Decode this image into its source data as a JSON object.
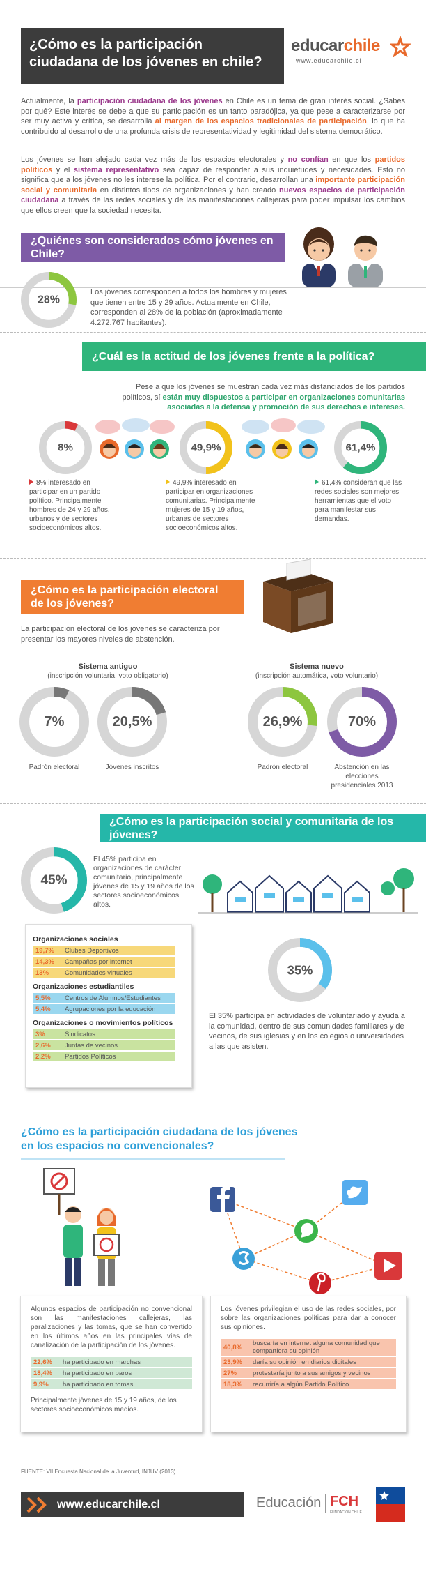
{
  "header": {
    "title": "¿Cómo es la participación ciudadana de los jóvenes en chile?",
    "logo": {
      "brand_a": "educar",
      "brand_b": "chile",
      "url": "www.educarchile.cl"
    }
  },
  "intro": [
    [
      "Actualmente, la ",
      "participación ciudadana de los jóvenes",
      " en Chile es un tema de gran interés social. ¿Sabes por qué? Este interés se debe a que su participación es un tanto paradójica, ya que pese a caracterizarse por ser muy activa y crítica, se desarrolla ",
      "al margen de los espacios tradicionales de participación",
      ", lo que ha contribuido al desarrollo de una profunda crisis de representatividad y legitimidad del sistema democrático."
    ],
    [
      "Los jóvenes se han alejado cada vez más de los espacios electorales y ",
      "no confían",
      " en que los ",
      "partidos políticos",
      " y el ",
      "sistema representativo",
      " sea capaz de responder a sus inquietudes y necesidades. Esto no significa que a los jóvenes no les interese la política. Por el contrario, desarrollan una ",
      "importante participación social y comunitaria",
      " en distintos tipos de organizaciones y han creado ",
      "nuevos espacios de participación ciudadana",
      " a través de las redes sociales y de las manifestaciones callejeras para poder impulsar los cambios que ellos creen que la sociedad necesita."
    ]
  ],
  "who": {
    "title": "¿Quiénes son considerados cómo jóvenes en Chile?",
    "donut": {
      "value": 28,
      "label": "28%",
      "color": "#8dc63f"
    },
    "text": "Los jóvenes corresponden a todos los hombres y mujeres que tienen entre 15 y 29 años. Actualmente en Chile, corresponden al 28% de la población (aproximadamente 4.272.767 habitantes)."
  },
  "attitude": {
    "title": "¿Cuál es la actitud de los jóvenes frente a la política?",
    "intro": [
      "Pese a que los jóvenes se muestran cada vez más distanciados de los partidos políticos, sí ",
      "están muy dispuestos a participar en organizaciones comunitarias asociadas a la defensa y promoción de sus derechos e intereses."
    ],
    "stats": [
      {
        "donut": {
          "value": 8,
          "label": "8%",
          "color": "#d9383a"
        },
        "text": "8% interesado en participar en un partido político. Principalmente hombres de 24 y 29 años, urbanos y de sectores socioeconómicos altos."
      },
      {
        "donut": {
          "value": 49.9,
          "label": "49,9%",
          "color": "#f2c21b"
        },
        "text": "49,9% interesado en participar en organizaciones comunitarias. Principalmente mujeres de 15 y 19 años, urbanas de sectores socioeconómicos altos."
      },
      {
        "donut": {
          "value": 61.4,
          "label": "61,4%",
          "color": "#2fb57b"
        },
        "text": "61,4% consideran que las redes sociales son mejores herramientas que el voto para manifestar sus demandas."
      }
    ]
  },
  "electoral": {
    "title": "¿Cómo es la participación electoral de los jóvenes?",
    "text": "La participación electoral de los jóvenes se caracteriza por presentar los mayores niveles de abstención.",
    "systems": [
      {
        "name": "Sistema antiguo",
        "detail": "(inscripción voluntaria, voto obligatorio)",
        "stats": [
          {
            "donut": {
              "value": 7,
              "label": "7%",
              "color": "#777777"
            },
            "caption": "Padrón electoral"
          },
          {
            "donut": {
              "value": 20.5,
              "label": "20,5%",
              "color": "#777777"
            },
            "caption": "Jóvenes inscritos"
          }
        ]
      },
      {
        "name": "Sistema nuevo",
        "detail": "(inscripción automática, voto voluntario)",
        "stats": [
          {
            "donut": {
              "value": 26.9,
              "label": "26,9%",
              "color": "#8dc63f"
            },
            "caption": "Padrón electoral"
          },
          {
            "donut": {
              "value": 70,
              "label": "70%",
              "color": "#7e5ba6"
            },
            "caption": "Abstención en las elecciones presidenciales 2013"
          }
        ]
      }
    ]
  },
  "social": {
    "title": "¿Cómo es la participación social y comunitaria de los jóvenes?",
    "donut": {
      "value": 45,
      "label": "45%",
      "color": "#25b7a9"
    },
    "text": "El 45% participa en organizaciones de carácter comunitario, principalmente jóvenes de 15 y 19 años de los sectores socioeconómicos altos.",
    "groups": [
      {
        "name": "Organizaciones sociales",
        "rows": [
          {
            "pct": "19,7%",
            "text": "Clubes Deportivos"
          },
          {
            "pct": "14,3%",
            "text": "Campañas por internet"
          },
          {
            "pct": "13%",
            "text": "Comunidades virtuales"
          }
        ]
      },
      {
        "name": "Organizaciones estudiantiles",
        "rows": [
          {
            "pct": "5,5%",
            "text": "Centros de Alumnos/Estudiantes"
          },
          {
            "pct": "5,4%",
            "text": "Agrupaciones por la educación"
          }
        ]
      },
      {
        "name": "Organizaciones o movimientos políticos",
        "rows": [
          {
            "pct": "3%",
            "text": "Sindicatos"
          },
          {
            "pct": "2,6%",
            "text": "Juntas de vecinos"
          },
          {
            "pct": "2,2%",
            "text": "Partidos Políticos"
          }
        ]
      }
    ],
    "volunteer": {
      "donut": {
        "value": 35,
        "label": "35%",
        "color": "#5bc0eb"
      },
      "text": "El 35% participa en actividades de voluntariado y ayuda a la comunidad, dentro de sus comunidades familiares y de vecinos, de sus iglesias y en los colegios o universidades a las que asisten."
    }
  },
  "nonconventional": {
    "title": "¿Cómo es la participación ciudadana de los jóvenes en los espacios no convencionales?",
    "left": {
      "text": "Algunos espacios de participación no convencional son las manifestaciones callejeras, las paralizaciones y las tomas, que se han convertido en los últimos años en las principales vías de canalización de la participación de los jóvenes.",
      "rows": [
        {
          "pct": "22,6%",
          "text": "ha participado en marchas"
        },
        {
          "pct": "18,4%",
          "text": "ha participado en paros"
        },
        {
          "pct": "9,9%",
          "text": "ha participado en tomas"
        }
      ],
      "note": "Principalmente jóvenes de 15 y 19 años, de los sectores socioeconómicos medios."
    },
    "right": {
      "text": "Los jóvenes privilegian el uso de las redes sociales, por sobre las organizaciones políticas para dar a conocer sus opiniones.",
      "rows": [
        {
          "pct": "40,8%",
          "text": "buscaría en internet alguna comunidad que compartiera su opinión"
        },
        {
          "pct": "23,9%",
          "text": "daría su opinión en diarios digitales"
        },
        {
          "pct": "27%",
          "text": "protestaría junto a sus amigos y vecinos"
        },
        {
          "pct": "18,3%",
          "text": "recurriría a algún Partido Político"
        }
      ]
    }
  },
  "source": "FUENTE: VII Encuesta Nacional de la Juventud, INJUV (2013)",
  "footer": {
    "url": "www.educarchile.cl",
    "brand": "Educación",
    "partner": "FCH",
    "partner_sub": "FUNDACIÓN CHILE"
  }
}
